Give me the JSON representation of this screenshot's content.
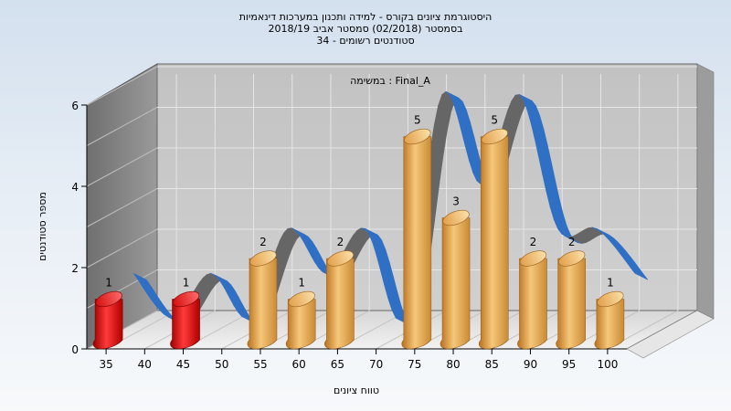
{
  "chart_data": {
    "type": "bar",
    "title_lines": [
      "היסטוגרמת ציונים בקורס - למידה ותכנון במערכות דינאמיות",
      "בסמסטר  (02/2018)  סמסטר אביב 2018/19",
      "סטודנטים רשומים - 34"
    ],
    "subtitle": "במשימה : Final_A",
    "xlabel": "טווח ציונים",
    "ylabel": "מספר סטודנטים",
    "ylim": [
      0,
      6
    ],
    "y_ticks": [
      "0",
      "2",
      "4",
      "6"
    ],
    "x_ticks": [
      "35",
      "40",
      "45",
      "50",
      "55",
      "60",
      "65",
      "70",
      "75",
      "80",
      "85",
      "90",
      "95",
      "100"
    ],
    "bars": [
      {
        "x": 35,
        "value": 1,
        "label": "1",
        "color": "#e00000"
      },
      {
        "x": 45,
        "value": 1,
        "label": "1",
        "color": "#e00000"
      },
      {
        "x": 55,
        "value": 2,
        "label": "2",
        "color": "#e8a040"
      },
      {
        "x": 60,
        "value": 1,
        "label": "1",
        "color": "#e8a040"
      },
      {
        "x": 65,
        "value": 2,
        "label": "2",
        "color": "#e8a040"
      },
      {
        "x": 75,
        "value": 5,
        "label": "5",
        "color": "#e8a040"
      },
      {
        "x": 80,
        "value": 3,
        "label": "3",
        "color": "#e8a040"
      },
      {
        "x": 85,
        "value": 5,
        "label": "5",
        "color": "#e8a040"
      },
      {
        "x": 90,
        "value": 2,
        "label": "2",
        "color": "#e8a040"
      },
      {
        "x": 95,
        "value": 2,
        "label": "2",
        "color": "#e8a040"
      },
      {
        "x": 100,
        "value": 1,
        "label": "1",
        "color": "#e8a040"
      }
    ],
    "curve": {
      "type": "ribbon",
      "front_color": "#2f6fc4",
      "back_color": "#666666"
    },
    "grid": true,
    "colors": {
      "fail": "#e00000",
      "pass": "#e8a040",
      "back_wall": "#c8c8c8",
      "side_wall": "#8e8e8e"
    }
  }
}
